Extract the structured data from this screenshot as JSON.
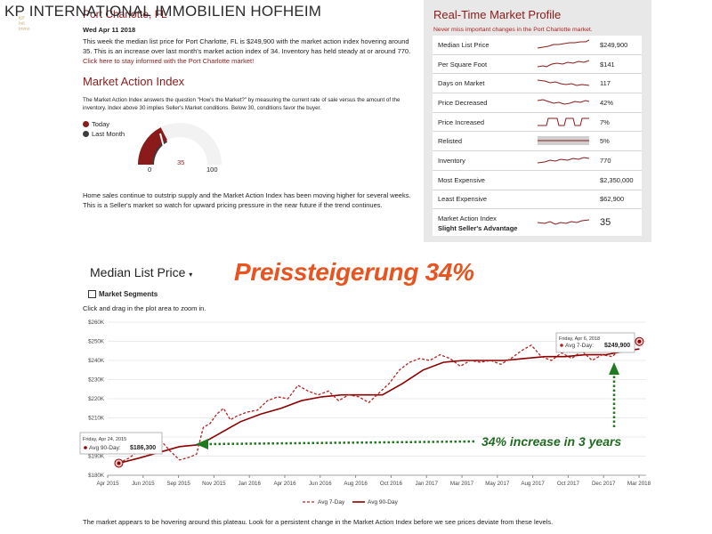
{
  "agency": {
    "name": "KP INTERNATIONAL IMMOBILIEN HOFHEIM",
    "logo_text": "KP\nInternational\nImmobilien"
  },
  "report": {
    "city_title": "Port Charlotte, FL",
    "date": "Wed Apr 11 2018",
    "intro_text": "This week the median list price for Port Charlotte, FL is $249,900 with the market action index hovering around 35. This is an increase over last month's market action index of 34. Inventory has held steady at or around 770.",
    "intro_link": "Click here to stay informed with the Port Charlotte market!",
    "mai_title": "Market Action Index",
    "mai_text": "The Market Action Index answers the question \"How's the Market?\" by measuring the current rate of sale versus the amount of the inventory. Index above 30 implies Seller's Market conditions. Below 30, conditions favor the buyer.",
    "legend": [
      {
        "label": "Today",
        "color": "#8b1a1a"
      },
      {
        "label": "Last Month",
        "color": "#3c3c3c"
      }
    ],
    "gauge": {
      "min_label": "0",
      "current_label": "35",
      "max_label": "100",
      "today_value": 35,
      "last_month_value": 34
    },
    "bottom_text": "Home sales continue to outstrip supply and the Market Action Index has been moving higher for several weeks. This is a Seller's market so watch for upward pricing pressure in the near future if the trend continues."
  },
  "profile": {
    "title": "Real-Time Market Profile",
    "subtitle": "Never miss important changes in the Port Charlotte market.",
    "rows": [
      {
        "label": "Median List Price",
        "value": "$249,900",
        "spark": true
      },
      {
        "label": "Per Square Foot",
        "value": "$141",
        "spark": true
      },
      {
        "label": "Days on Market",
        "value": "117",
        "spark": true
      },
      {
        "label": "Price Decreased",
        "value": "42%",
        "spark": true
      },
      {
        "label": "Price Increased",
        "value": "7%",
        "spark": true
      },
      {
        "label": "Relisted",
        "value": "5%",
        "spark": true
      },
      {
        "label": "Inventory",
        "value": "770",
        "spark": true
      },
      {
        "label": "Most Expensive",
        "value": "$2,350,000",
        "spark": false
      },
      {
        "label": "Least Expensive",
        "value": "$62,900",
        "spark": false
      }
    ],
    "mai_row": {
      "label": "Market Action Index",
      "sublabel": "Slight Seller's Advantage",
      "value": "35"
    }
  },
  "chart_section": {
    "selector_label": "Median List Price",
    "headline": "Preissteigerung 34%",
    "segments_label": "Market Segments",
    "zoom_hint": "Click and drag in the plot area to zoom in.",
    "annotation": "34% increase in 3 years",
    "footer_text": "The market appears to be hovering around this plateau. Look for a persistent change in the Market Action Index before we see prices deviate from these levels.",
    "start_tooltip": {
      "date": "Friday, Apr 24, 2015",
      "series": "Avg 90-Day:",
      "value": "$186,300"
    },
    "end_tooltip": {
      "date": "Friday, Apr 6, 2018",
      "series": "Avg 7-Day:",
      "value": "$249,900"
    }
  },
  "chart_data": {
    "type": "line",
    "ylim": [
      180000,
      260000
    ],
    "y_ticks": [
      "$180K",
      "$190K",
      "$200K",
      "$210K",
      "$220K",
      "$230K",
      "$240K",
      "$250K",
      "$260K"
    ],
    "x_ticks": [
      "Apr 2015",
      "Jun 2015",
      "Sep 2015",
      "Nov 2015",
      "Jan 2016",
      "Apr 2016",
      "Jun 2016",
      "Aug 2016",
      "Oct 2016",
      "Jan 2017",
      "Mar 2017",
      "May 2017",
      "Aug 2017",
      "Oct 2017",
      "Dec 2017",
      "Mar 2018"
    ],
    "legend": [
      "Avg 7-Day",
      "Avg 90-Day"
    ],
    "series": [
      {
        "name": "Avg 7-Day",
        "style": "dashed",
        "color": "#b22222",
        "points": [
          [
            "2015-04-24",
            186300
          ],
          [
            "2015-05-15",
            189000
          ],
          [
            "2015-06-05",
            193000
          ],
          [
            "2015-06-26",
            196000
          ],
          [
            "2015-07-17",
            199000
          ],
          [
            "2015-08-07",
            193000
          ],
          [
            "2015-08-28",
            188000
          ],
          [
            "2015-09-18",
            189500
          ],
          [
            "2015-10-02",
            191000
          ],
          [
            "2015-10-16",
            205000
          ],
          [
            "2015-10-30",
            207000
          ],
          [
            "2015-11-13",
            212000
          ],
          [
            "2015-11-27",
            215000
          ],
          [
            "2015-12-11",
            209000
          ],
          [
            "2015-12-25",
            211000
          ],
          [
            "2016-01-15",
            213000
          ],
          [
            "2016-02-05",
            214000
          ],
          [
            "2016-02-26",
            219000
          ],
          [
            "2016-03-18",
            221000
          ],
          [
            "2016-04-08",
            220000
          ],
          [
            "2016-04-29",
            227000
          ],
          [
            "2016-05-20",
            224000
          ],
          [
            "2016-06-10",
            222000
          ],
          [
            "2016-07-01",
            224000
          ],
          [
            "2016-07-22",
            219000
          ],
          [
            "2016-08-12",
            222000
          ],
          [
            "2016-09-02",
            221000
          ],
          [
            "2016-09-23",
            218000
          ],
          [
            "2016-10-14",
            223000
          ],
          [
            "2016-11-04",
            228000
          ],
          [
            "2016-11-25",
            235000
          ],
          [
            "2016-12-16",
            239000
          ],
          [
            "2017-01-06",
            241000
          ],
          [
            "2017-01-27",
            240000
          ],
          [
            "2017-02-17",
            243000
          ],
          [
            "2017-03-10",
            241000
          ],
          [
            "2017-03-31",
            237000
          ],
          [
            "2017-04-21",
            240000
          ],
          [
            "2017-05-12",
            239000
          ],
          [
            "2017-06-02",
            240000
          ],
          [
            "2017-06-23",
            238000
          ],
          [
            "2017-07-14",
            241000
          ],
          [
            "2017-08-04",
            245000
          ],
          [
            "2017-08-25",
            248000
          ],
          [
            "2017-09-15",
            242000
          ],
          [
            "2017-10-06",
            240000
          ],
          [
            "2017-10-27",
            244000
          ],
          [
            "2017-11-17",
            241000
          ],
          [
            "2017-12-08",
            245000
          ],
          [
            "2017-12-29",
            240000
          ],
          [
            "2018-01-19",
            243000
          ],
          [
            "2018-02-09",
            242000
          ],
          [
            "2018-03-02",
            247000
          ],
          [
            "2018-03-23",
            248000
          ],
          [
            "2018-04-06",
            249900
          ]
        ]
      },
      {
        "name": "Avg 90-Day",
        "style": "solid",
        "color": "#8b0000",
        "points": [
          [
            "2015-04-24",
            186300
          ],
          [
            "2015-06-05",
            189000
          ],
          [
            "2015-07-17",
            192000
          ],
          [
            "2015-08-28",
            195000
          ],
          [
            "2015-10-09",
            196000
          ],
          [
            "2015-11-20",
            202000
          ],
          [
            "2016-01-01",
            208000
          ],
          [
            "2016-02-12",
            212000
          ],
          [
            "2016-03-25",
            215000
          ],
          [
            "2016-05-06",
            219000
          ],
          [
            "2016-06-17",
            221000
          ],
          [
            "2016-07-29",
            222000
          ],
          [
            "2016-09-09",
            222000
          ],
          [
            "2016-10-21",
            222000
          ],
          [
            "2016-12-02",
            228000
          ],
          [
            "2017-01-13",
            235000
          ],
          [
            "2017-02-24",
            239000
          ],
          [
            "2017-04-07",
            240000
          ],
          [
            "2017-05-19",
            240000
          ],
          [
            "2017-06-30",
            240000
          ],
          [
            "2017-08-11",
            241000
          ],
          [
            "2017-09-22",
            242000
          ],
          [
            "2017-11-03",
            242000
          ],
          [
            "2017-12-15",
            243000
          ],
          [
            "2018-01-26",
            243000
          ],
          [
            "2018-03-09",
            245000
          ],
          [
            "2018-04-06",
            246000
          ]
        ]
      }
    ]
  }
}
